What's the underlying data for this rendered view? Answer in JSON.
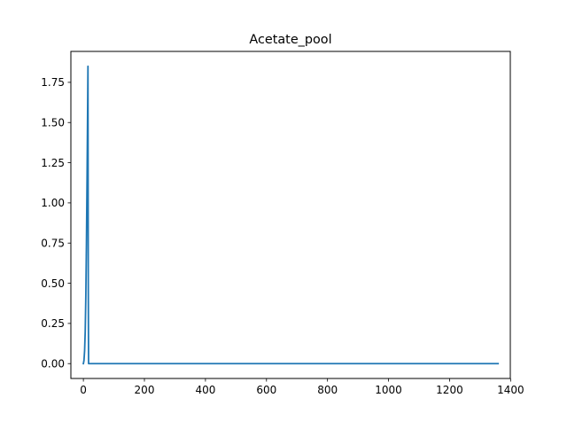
{
  "chart_data": {
    "type": "line",
    "title": "Acetate_pool",
    "xlabel": "",
    "ylabel": "",
    "xlim": [
      -41,
      1399
    ],
    "ylim": [
      -0.0925,
      1.9425
    ],
    "x_ticks": [
      0,
      200,
      400,
      600,
      800,
      1000,
      1200,
      1400
    ],
    "y_ticks": [
      0.0,
      0.25,
      0.5,
      0.75,
      1.0,
      1.25,
      1.5,
      1.75
    ],
    "x_tick_labels": [
      "0",
      "200",
      "400",
      "600",
      "800",
      "1000",
      "1200",
      "1400"
    ],
    "y_tick_labels": [
      "0.00",
      "0.25",
      "0.50",
      "0.75",
      "1.00",
      "1.25",
      "1.50",
      "1.75"
    ],
    "grid": false,
    "legend": "none",
    "series": [
      {
        "color": "#1f77b4",
        "x": [
          0,
          2,
          4,
          6,
          8,
          10,
          12,
          14,
          15,
          16,
          17,
          200,
          400,
          600,
          800,
          1000,
          1200,
          1359
        ],
        "y": [
          0.0,
          0.02,
          0.08,
          0.2,
          0.42,
          0.75,
          1.15,
          1.6,
          1.85,
          0.5,
          0.0,
          0.0,
          0.0,
          0.0,
          0.0,
          0.0,
          0.0,
          0.0
        ]
      }
    ]
  }
}
